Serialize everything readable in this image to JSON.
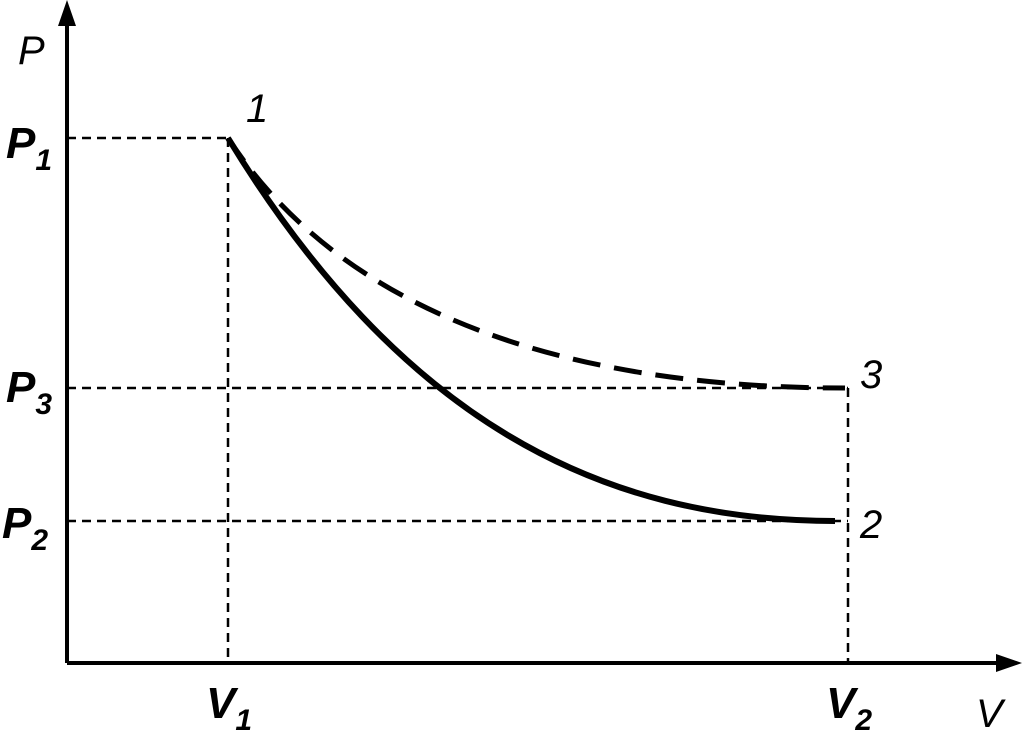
{
  "diagram": {
    "axes": {
      "y_label": "P",
      "x_label": "V"
    },
    "pressure_levels": [
      {
        "symbol": "P",
        "subscript": "1"
      },
      {
        "symbol": "P",
        "subscript": "3"
      },
      {
        "symbol": "P",
        "subscript": "2"
      }
    ],
    "volume_levels": [
      {
        "symbol": "V",
        "subscript": "1"
      },
      {
        "symbol": "V",
        "subscript": "2"
      }
    ],
    "state_points": [
      "1",
      "2",
      "3"
    ],
    "curves": [
      {
        "from": "1",
        "to": "2",
        "style": "solid"
      },
      {
        "from": "1",
        "to": "3",
        "style": "dashed"
      }
    ],
    "colors": {
      "line": "#000000",
      "background": "#ffffff"
    }
  }
}
